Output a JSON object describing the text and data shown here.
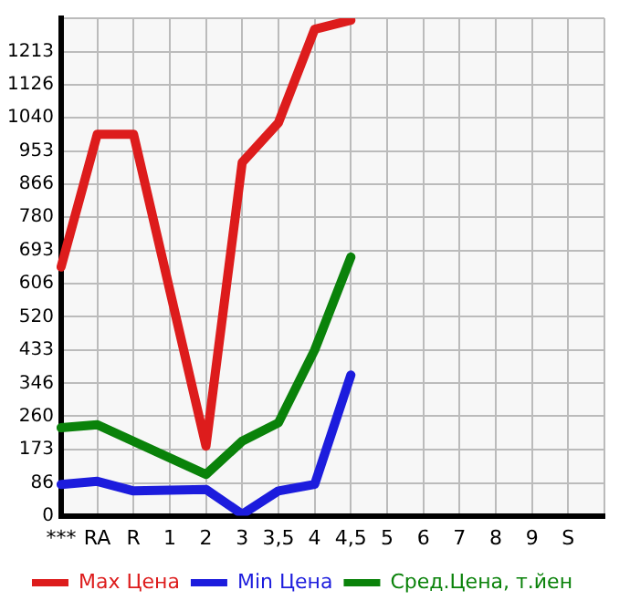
{
  "chart_data": {
    "type": "line",
    "categories": [
      "***",
      "RA",
      "R",
      "1",
      "2",
      "3",
      "3,5",
      "4",
      "4,5",
      "5",
      "6",
      "7",
      "8",
      "9",
      "S",
      null
    ],
    "series": [
      {
        "name": "Max Цена",
        "color": "#dd1c1c",
        "values": [
          650,
          997,
          997,
          null,
          182,
          923,
          1027,
          1271,
          1295,
          null,
          null,
          null,
          null,
          null,
          null,
          null
        ]
      },
      {
        "name": "Min Цена",
        "color": "#1c1cdd",
        "values": [
          82,
          90,
          65,
          null,
          69,
          4,
          65,
          82,
          368,
          null,
          null,
          null,
          null,
          null,
          null,
          null
        ]
      },
      {
        "name": "Сред.Цена, т.йен",
        "color": "#0a820a",
        "values": [
          230,
          238,
          null,
          null,
          108,
          195,
          243,
          433,
          676,
          null,
          null,
          null,
          null,
          null,
          null,
          null
        ]
      }
    ],
    "ylim": [
      0,
      1300
    ],
    "yticks": [
      0,
      86,
      173,
      260,
      346,
      433,
      520,
      606,
      693,
      780,
      866,
      953,
      1040,
      1126,
      1213,
      {
        "value": 1300,
        "label": null
      }
    ],
    "grid": true,
    "legend": "bottom",
    "marker": "none",
    "line_style": "solid"
  }
}
